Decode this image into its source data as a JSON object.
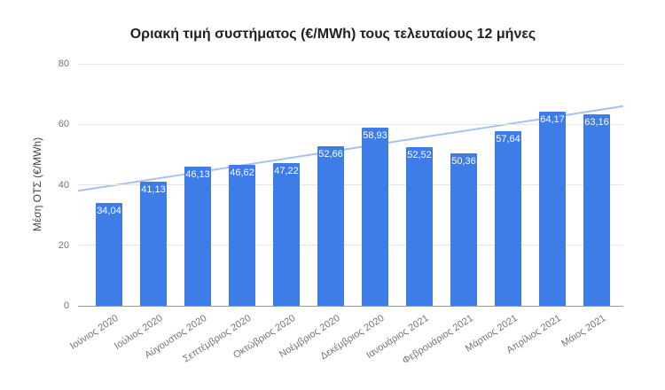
{
  "chart_data": {
    "type": "bar",
    "title": "Οριακή τιμή συστήματος (€/MWh) τους τελευταίους 12 μήνες",
    "categories": [
      "Ιούνιος 2020",
      "Ιούλιος 2020",
      "Αύγουστος 2020",
      "Σεπτέμβριος 2020",
      "Οκτώβριος 2020",
      "Νοέμβριος 2020",
      "Δεκέμβριος 2020",
      "Ιανουάριος 2021",
      "Φεβρουάριος 2021",
      "Μάρτιος 2021",
      "Απρίλιος 2021",
      "Μάιος 2021"
    ],
    "values": [
      34.04,
      41.13,
      46.13,
      46.62,
      47.22,
      52.66,
      58.93,
      52.52,
      50.36,
      57.64,
      64.17,
      63.16
    ],
    "value_labels": [
      "34,04",
      "41,13",
      "46,13",
      "46,62",
      "47,22",
      "52,66",
      "58,93",
      "52,52",
      "50,36",
      "57,64",
      "64,17",
      "63,16"
    ],
    "xlabel": "",
    "ylabel": "Μέση ΟΤΣ (€/MWh)",
    "ylim": [
      0,
      80
    ],
    "yticks": [
      0,
      20,
      40,
      60,
      80
    ],
    "grid": true,
    "legend": "none",
    "bar_color": "#3e7ce8",
    "value_label_color": "#ffffff",
    "trendline": {
      "type": "linear",
      "start_value": 38.0,
      "end_value": 66.0,
      "color": "#a4c2f4"
    }
  }
}
